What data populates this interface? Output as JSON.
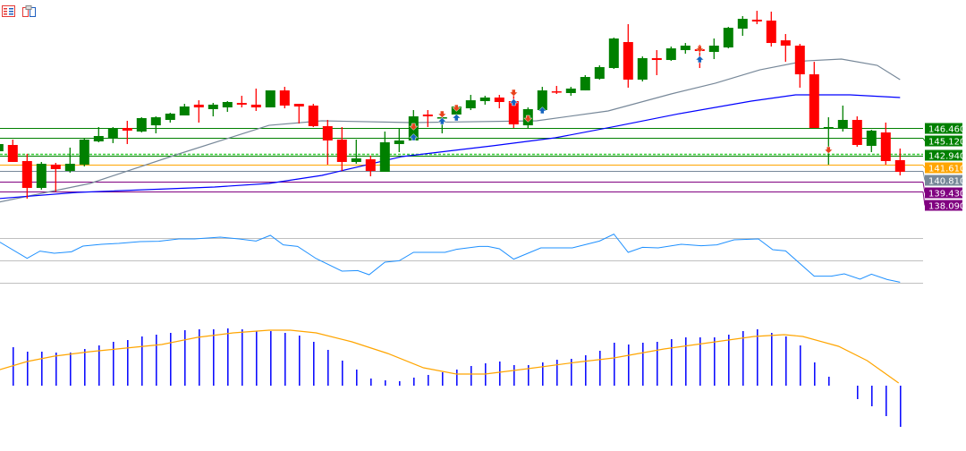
{
  "toolbar": {
    "icons": [
      "data-window-icon",
      "template-icon"
    ]
  },
  "colors": {
    "bull": "#008000",
    "bear": "#ff0000",
    "ma_slow": "#778899",
    "ma_fast": "#0000ff",
    "rsi": "#1e90ff",
    "hist": "#0000ff",
    "signal": "#ffa500",
    "grid": "#c0c0c0",
    "sell_arrow": "#e8431c",
    "buy_arrow": "#1565c0"
  },
  "chart_data": [
    {
      "type": "candlestick",
      "title": "",
      "candles_ohlc": [
        [
          143.39,
          144.57,
          143.16,
          144.34
        ],
        [
          144.22,
          144.93,
          141.98,
          141.98
        ],
        [
          142.1,
          143.04,
          137.15,
          138.56
        ],
        [
          138.56,
          141.98,
          138.33,
          141.74
        ],
        [
          141.63,
          141.86,
          138.09,
          141.04
        ],
        [
          140.8,
          143.87,
          140.57,
          141.74
        ],
        [
          141.63,
          145.05,
          141.39,
          144.93
        ],
        [
          144.69,
          146.58,
          144.57,
          145.4
        ],
        [
          145.16,
          146.58,
          144.46,
          146.46
        ],
        [
          146.46,
          147.4,
          144.34,
          146.11
        ],
        [
          145.99,
          147.87,
          145.87,
          147.76
        ],
        [
          146.81,
          147.99,
          145.75,
          147.87
        ],
        [
          147.52,
          148.46,
          147.17,
          148.35
        ],
        [
          148.11,
          149.64,
          148.11,
          149.29
        ],
        [
          149.53,
          150.11,
          147.17,
          149.17
        ],
        [
          148.94,
          149.76,
          147.99,
          149.53
        ],
        [
          149.17,
          150.0,
          148.58,
          149.88
        ],
        [
          149.76,
          150.7,
          149.17,
          149.53
        ],
        [
          149.53,
          151.65,
          148.7,
          149.17
        ],
        [
          149.17,
          151.41,
          149.17,
          151.41
        ],
        [
          151.41,
          151.88,
          149.05,
          149.41
        ],
        [
          149.64,
          149.64,
          147.05,
          149.29
        ],
        [
          149.41,
          149.64,
          146.58,
          146.7
        ],
        [
          146.7,
          147.52,
          141.63,
          144.81
        ],
        [
          144.93,
          146.58,
          140.8,
          141.98
        ],
        [
          141.98,
          144.93,
          141.74,
          142.45
        ],
        [
          142.33,
          142.81,
          140.09,
          140.8
        ],
        [
          140.68,
          145.99,
          140.68,
          144.57
        ],
        [
          144.34,
          146.34,
          143.28,
          144.81
        ],
        [
          144.81,
          148.82,
          144.81,
          147.99
        ],
        [
          148.23,
          148.82,
          146.58,
          147.99
        ],
        [
          147.76,
          148.23,
          145.75,
          147.87
        ],
        [
          148.23,
          149.29,
          147.52,
          149.29
        ],
        [
          149.05,
          150.82,
          148.82,
          150.11
        ],
        [
          150.0,
          150.7,
          149.53,
          150.47
        ],
        [
          150.47,
          150.82,
          149.05,
          149.88
        ],
        [
          150.0,
          150.94,
          146.46,
          146.93
        ],
        [
          146.81,
          149.17,
          146.46,
          148.94
        ],
        [
          148.82,
          151.88,
          148.35,
          151.41
        ],
        [
          151.29,
          152.0,
          150.94,
          151.23
        ],
        [
          151.06,
          151.88,
          150.7,
          151.65
        ],
        [
          151.41,
          153.42,
          151.41,
          153.18
        ],
        [
          152.94,
          154.71,
          152.83,
          154.48
        ],
        [
          154.36,
          158.37,
          154.24,
          158.25
        ],
        [
          157.78,
          160.14,
          151.77,
          152.83
        ],
        [
          152.83,
          155.89,
          152.59,
          155.66
        ],
        [
          155.66,
          156.72,
          153.42,
          155.42
        ],
        [
          155.42,
          157.19,
          155.3,
          156.95
        ],
        [
          156.72,
          157.66,
          156.25,
          157.31
        ],
        [
          156.83,
          157.42,
          154.36,
          156.6
        ],
        [
          156.48,
          158.25,
          155.54,
          157.31
        ],
        [
          157.07,
          159.78,
          156.95,
          159.66
        ],
        [
          159.55,
          161.2,
          158.6,
          160.84
        ],
        [
          160.73,
          161.9,
          160.14,
          160.49
        ],
        [
          160.61,
          161.79,
          157.19,
          157.66
        ],
        [
          158.01,
          158.84,
          155.18,
          157.31
        ],
        [
          157.31,
          157.54,
          151.77,
          153.53
        ],
        [
          153.53,
          155.18,
          146.46,
          146.46
        ],
        [
          146.46,
          147.87,
          141.63,
          146.58
        ],
        [
          146.46,
          149.41,
          145.99,
          147.52
        ],
        [
          147.52,
          147.99,
          143.98,
          144.22
        ],
        [
          144.1,
          146.22,
          143.28,
          146.11
        ],
        [
          145.87,
          147.17,
          141.63,
          142.1
        ],
        [
          142.22,
          143.75,
          140.21,
          140.68
        ]
      ],
      "ma_slow": [
        [
          0,
          136.67
        ],
        [
          6.4,
          139.15
        ],
        [
          12.6,
          143.04
        ],
        [
          18.9,
          146.81
        ],
        [
          22.6,
          147.4
        ],
        [
          28.9,
          147.17
        ],
        [
          37.6,
          147.4
        ],
        [
          42.6,
          148.7
        ],
        [
          47,
          150.94
        ],
        [
          50.1,
          152.36
        ],
        [
          53.2,
          154.12
        ],
        [
          56.4,
          155.3
        ],
        [
          58.9,
          155.54
        ],
        [
          61.4,
          154.71
        ],
        [
          63,
          152.83
        ]
      ],
      "ma_fast": [
        [
          0,
          137.15
        ],
        [
          5.5,
          137.97
        ],
        [
          15.1,
          138.68
        ],
        [
          18.9,
          139.15
        ],
        [
          22.6,
          140.21
        ],
        [
          28.2,
          142.69
        ],
        [
          34.5,
          144.1
        ],
        [
          38.9,
          145.16
        ],
        [
          43.2,
          146.7
        ],
        [
          47.6,
          148.35
        ],
        [
          52.6,
          150.0
        ],
        [
          55.7,
          150.82
        ],
        [
          59.5,
          150.82
        ],
        [
          63,
          150.47
        ]
      ],
      "levels": [
        {
          "label": "146.460",
          "price": 146.46,
          "color": "#008000",
          "style": "solid"
        },
        {
          "label": "145.120",
          "price": 145.12,
          "color": "#008000",
          "style": "solid"
        },
        {
          "label": "142.940",
          "price": 142.94,
          "color": "#008000",
          "style": "dashed"
        },
        {
          "label": "141.610",
          "price": 141.61,
          "color": "#ffa500",
          "style": "solid"
        },
        {
          "label": "140.810",
          "price": 140.81,
          "color": "#778899",
          "style": "solid"
        },
        {
          "label": "139.430",
          "price": 139.43,
          "color": "#800080",
          "style": "solid"
        },
        {
          "label": "138.090",
          "price": 138.09,
          "color": "#800080",
          "style": "solid"
        }
      ],
      "signals": [
        {
          "index": 29,
          "type": "sell",
          "price": 146.58
        },
        {
          "index": 29,
          "type": "buy",
          "price": 145.28
        },
        {
          "index": 31,
          "type": "sell",
          "price": 148.23
        },
        {
          "index": 31,
          "type": "buy",
          "price": 147.4
        },
        {
          "index": 32,
          "type": "sell",
          "price": 149.05
        },
        {
          "index": 32,
          "type": "buy",
          "price": 147.87
        },
        {
          "index": 36,
          "type": "sell",
          "price": 151.06
        },
        {
          "index": 36,
          "type": "buy",
          "price": 149.88
        },
        {
          "index": 37,
          "type": "sell",
          "price": 147.64
        },
        {
          "index": 38,
          "type": "buy",
          "price": 148.82
        },
        {
          "index": 49,
          "type": "sell",
          "price": 156.83
        },
        {
          "index": 49,
          "type": "buy",
          "price": 155.54
        },
        {
          "index": 58,
          "type": "sell",
          "price": 143.51
        }
      ],
      "ylim": [
        136.8,
        161.9
      ]
    },
    {
      "type": "line",
      "name": "oscillator",
      "levels": [
        70,
        50,
        30
      ],
      "points": [
        [
          0.1,
          66.3
        ],
        [
          2,
          51.9
        ],
        [
          2.9,
          58.3
        ],
        [
          3.9,
          56.4
        ],
        [
          5.1,
          57.7
        ],
        [
          5.9,
          62.8
        ],
        [
          7.2,
          64.4
        ],
        [
          8.4,
          65.2
        ],
        [
          9.9,
          66.8
        ],
        [
          11.2,
          67.1
        ],
        [
          12.6,
          69.2
        ],
        [
          13.7,
          69.2
        ],
        [
          15.5,
          70.8
        ],
        [
          16.8,
          69.2
        ],
        [
          18,
          67.3
        ],
        [
          19,
          72.4
        ],
        [
          19.9,
          63.9
        ],
        [
          20.9,
          62.5
        ],
        [
          22.2,
          51.6
        ],
        [
          24,
          40.4
        ],
        [
          25.1,
          40.9
        ],
        [
          25.9,
          37.2
        ],
        [
          27,
          48.4
        ],
        [
          28,
          49.7
        ],
        [
          29,
          57.2
        ],
        [
          31.2,
          57.2
        ],
        [
          32,
          59.9
        ],
        [
          33.6,
          62.5
        ],
        [
          34.2,
          62.5
        ],
        [
          35,
          60.4
        ],
        [
          36,
          51.1
        ],
        [
          37.9,
          61.2
        ],
        [
          40.1,
          61.2
        ],
        [
          42,
          67.3
        ],
        [
          43,
          73.5
        ],
        [
          44,
          57.2
        ],
        [
          45,
          61.7
        ],
        [
          46.1,
          61.2
        ],
        [
          47.7,
          64.4
        ],
        [
          49.1,
          63.1
        ],
        [
          50.2,
          63.9
        ],
        [
          51.4,
          68.4
        ],
        [
          53.1,
          69.2
        ],
        [
          54.1,
          59.6
        ],
        [
          55,
          58.5
        ],
        [
          57,
          35.9
        ],
        [
          58.2,
          35.9
        ],
        [
          59.1,
          38.0
        ],
        [
          60.2,
          33.2
        ],
        [
          61,
          37.7
        ],
        [
          62.1,
          32.9
        ],
        [
          63,
          30.5
        ]
      ],
      "ylim": [
        25,
        80
      ]
    },
    {
      "type": "bar",
      "name": "histogram",
      "start_index": 1,
      "values": [
        0.43,
        0.38,
        0.38,
        0.37,
        0.37,
        0.41,
        0.45,
        0.49,
        0.51,
        0.55,
        0.57,
        0.59,
        0.62,
        0.63,
        0.63,
        0.64,
        0.63,
        0.61,
        0.61,
        0.59,
        0.56,
        0.49,
        0.4,
        0.28,
        0.18,
        0.08,
        0.06,
        0.05,
        0.09,
        0.12,
        0.15,
        0.18,
        0.22,
        0.25,
        0.27,
        0.23,
        0.23,
        0.26,
        0.29,
        0.3,
        0.34,
        0.39,
        0.48,
        0.46,
        0.48,
        0.49,
        0.52,
        0.54,
        0.54,
        0.54,
        0.57,
        0.61,
        0.63,
        0.59,
        0.55,
        0.45,
        0.26,
        0.1,
        0.0,
        -0.15,
        -0.23,
        -0.34,
        -0.46
      ],
      "signal": [
        [
          0.1,
          0.18
        ],
        [
          2,
          0.27
        ],
        [
          3.9,
          0.33
        ],
        [
          6.4,
          0.38
        ],
        [
          8.9,
          0.42
        ],
        [
          11.4,
          0.46
        ],
        [
          13.9,
          0.54
        ],
        [
          16.4,
          0.59
        ],
        [
          18.9,
          0.62
        ],
        [
          20.4,
          0.62
        ],
        [
          22.2,
          0.59
        ],
        [
          24.7,
          0.49
        ],
        [
          27.2,
          0.36
        ],
        [
          29.7,
          0.2
        ],
        [
          32,
          0.13
        ],
        [
          34,
          0.13
        ],
        [
          37,
          0.19
        ],
        [
          40.3,
          0.26
        ],
        [
          43,
          0.31
        ],
        [
          46.5,
          0.41
        ],
        [
          50.1,
          0.49
        ],
        [
          52.8,
          0.55
        ],
        [
          54.9,
          0.57
        ],
        [
          56.2,
          0.55
        ],
        [
          58.7,
          0.44
        ],
        [
          60.7,
          0.28
        ],
        [
          62.9,
          0.03
        ]
      ],
      "ylim": [
        -0.5,
        0.7
      ]
    }
  ]
}
